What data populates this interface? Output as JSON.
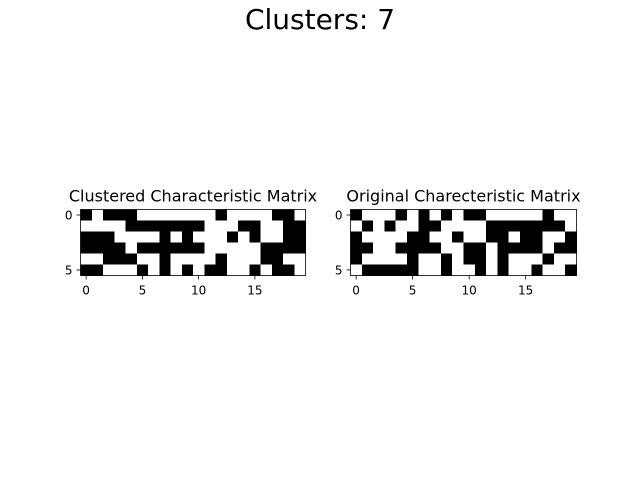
{
  "title": "Clusters: 7",
  "chart_data": [
    {
      "type": "heatmap",
      "title": "Clustered Characteristic Matrix",
      "x_ticks": [
        0,
        5,
        10,
        15
      ],
      "y_ticks": [
        0,
        5
      ],
      "xlim": [
        -0.5,
        19.5
      ],
      "ylim": [
        5.5,
        -0.5
      ],
      "colormap": [
        "#ffffff",
        "#000000"
      ],
      "matrix": [
        [
          1,
          0,
          1,
          1,
          1,
          0,
          0,
          0,
          0,
          0,
          0,
          0,
          1,
          0,
          0,
          0,
          0,
          1,
          1,
          0
        ],
        [
          0,
          0,
          0,
          0,
          1,
          1,
          1,
          1,
          1,
          1,
          1,
          0,
          0,
          0,
          1,
          1,
          0,
          0,
          1,
          1
        ],
        [
          1,
          1,
          1,
          0,
          0,
          0,
          0,
          1,
          0,
          1,
          0,
          0,
          0,
          1,
          0,
          1,
          0,
          0,
          1,
          1
        ],
        [
          1,
          1,
          1,
          1,
          0,
          1,
          1,
          1,
          1,
          1,
          1,
          0,
          0,
          0,
          0,
          0,
          1,
          1,
          1,
          1
        ],
        [
          0,
          0,
          1,
          1,
          1,
          0,
          0,
          1,
          0,
          0,
          0,
          0,
          1,
          0,
          0,
          0,
          1,
          1,
          0,
          0
        ],
        [
          1,
          1,
          0,
          0,
          0,
          1,
          0,
          1,
          0,
          1,
          0,
          1,
          1,
          0,
          0,
          1,
          0,
          1,
          1,
          0
        ]
      ]
    },
    {
      "type": "heatmap",
      "title": "Original Charecteristic Matrix",
      "x_ticks": [
        0,
        5,
        10,
        15
      ],
      "y_ticks": [
        0,
        5
      ],
      "xlim": [
        -0.5,
        19.5
      ],
      "ylim": [
        5.5,
        -0.5
      ],
      "colormap": [
        "#ffffff",
        "#000000"
      ],
      "matrix": [
        [
          1,
          0,
          0,
          0,
          1,
          0,
          1,
          0,
          1,
          0,
          1,
          1,
          0,
          0,
          0,
          0,
          0,
          1,
          0,
          0
        ],
        [
          0,
          1,
          0,
          1,
          0,
          0,
          1,
          1,
          0,
          0,
          0,
          0,
          1,
          1,
          1,
          1,
          1,
          1,
          1,
          0
        ],
        [
          1,
          0,
          0,
          0,
          0,
          1,
          1,
          0,
          0,
          1,
          0,
          0,
          1,
          1,
          0,
          1,
          1,
          0,
          0,
          1
        ],
        [
          1,
          1,
          0,
          0,
          1,
          1,
          1,
          1,
          0,
          0,
          1,
          1,
          0,
          1,
          1,
          1,
          1,
          0,
          1,
          1
        ],
        [
          1,
          0,
          0,
          0,
          0,
          1,
          0,
          0,
          1,
          0,
          1,
          1,
          0,
          1,
          0,
          0,
          0,
          1,
          0,
          0
        ],
        [
          0,
          1,
          1,
          1,
          1,
          1,
          0,
          0,
          1,
          0,
          0,
          1,
          0,
          1,
          0,
          0,
          1,
          0,
          0,
          1
        ]
      ]
    }
  ]
}
